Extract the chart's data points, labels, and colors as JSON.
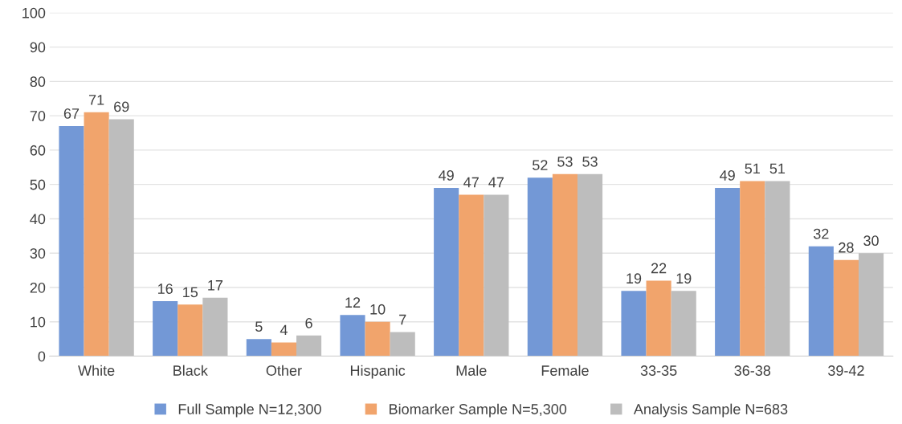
{
  "chart_data": {
    "type": "bar",
    "categories": [
      "White",
      "Black",
      "Other",
      "Hispanic",
      "Male",
      "Female",
      "33-35",
      "36-38",
      "39-42"
    ],
    "series": [
      {
        "name": "Full Sample N=12,300",
        "color": "#7398d6",
        "values": [
          67,
          16,
          5,
          12,
          49,
          52,
          19,
          49,
          32
        ]
      },
      {
        "name": "Biomarker Sample N=5,300",
        "color": "#f1a46c",
        "values": [
          71,
          15,
          4,
          10,
          47,
          53,
          22,
          51,
          28
        ]
      },
      {
        "name": "Analysis Sample N=683",
        "color": "#bdbdbd",
        "values": [
          69,
          17,
          6,
          7,
          47,
          53,
          19,
          51,
          30
        ]
      }
    ],
    "ylim": [
      0,
      100
    ],
    "yticks": [
      0,
      10,
      20,
      30,
      40,
      50,
      60,
      70,
      80,
      90,
      100
    ],
    "grid": "y",
    "legend": "bottom",
    "data_labels": true
  }
}
